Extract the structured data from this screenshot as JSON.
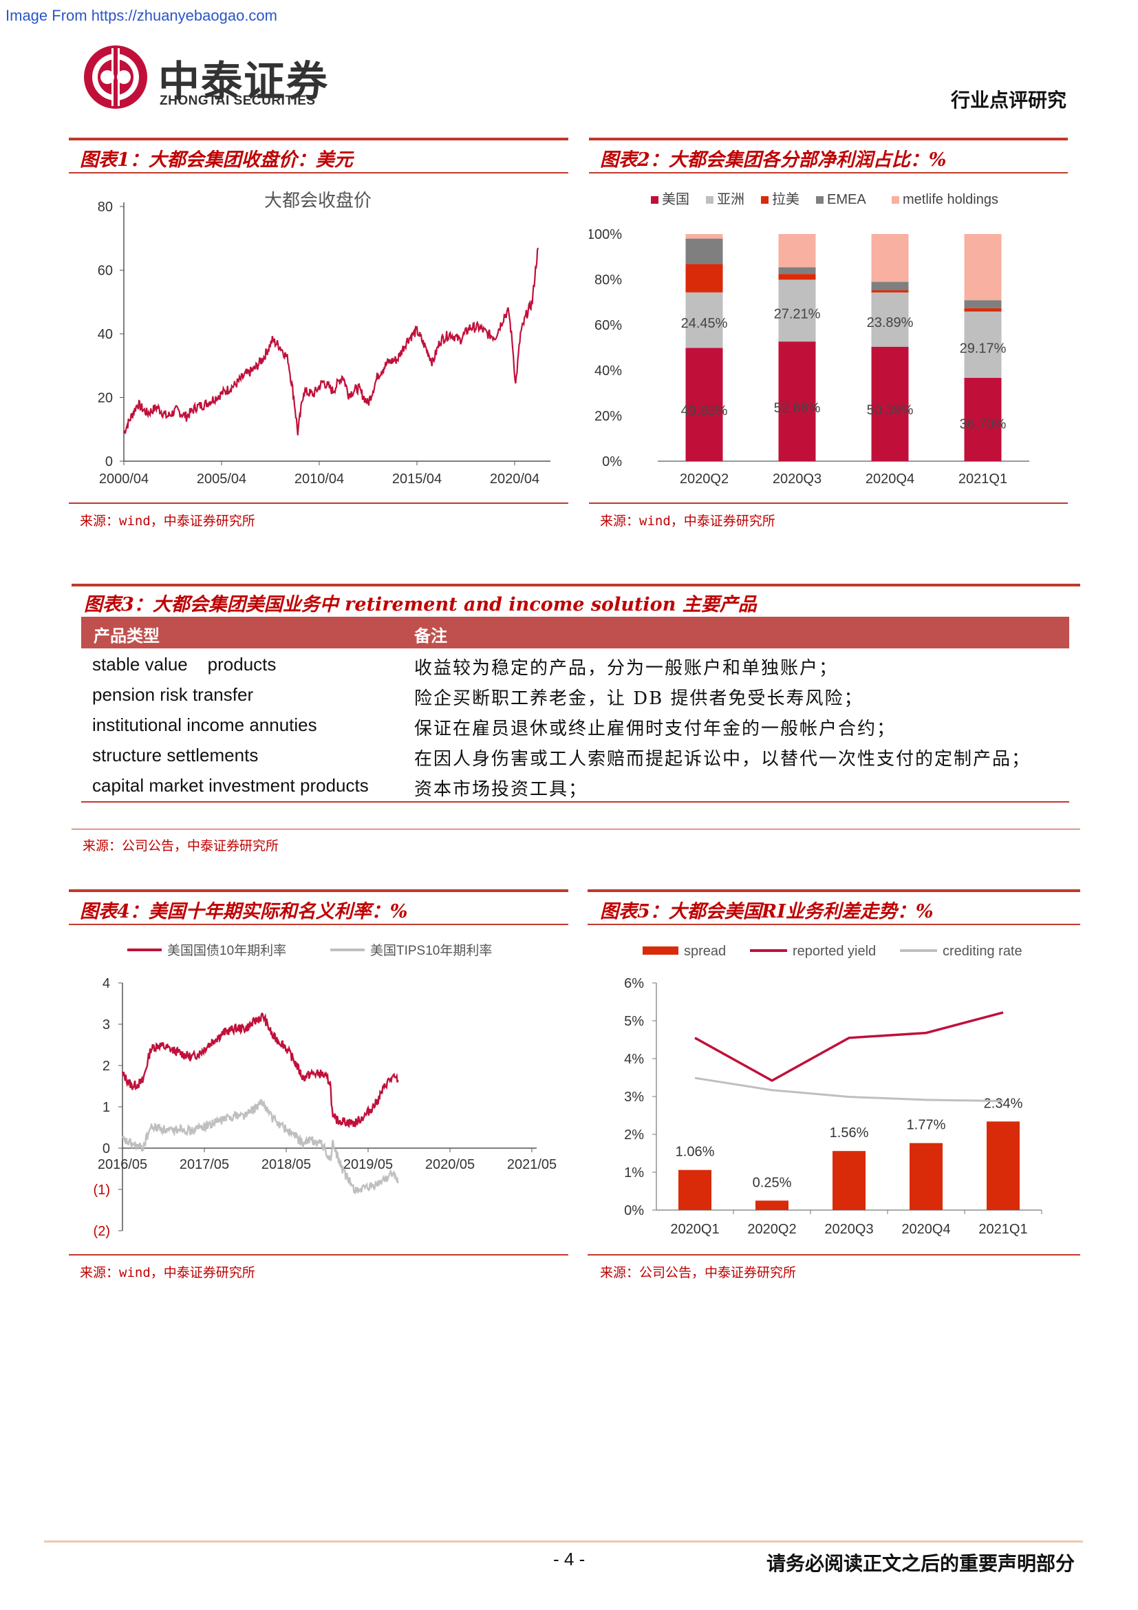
{
  "watermark": "Image From https://zhuanyebaogao.com",
  "header": {
    "logo_cn": "中泰证券",
    "logo_en": "ZHONGTAI SECURITIES",
    "report_type": "行业点评研究"
  },
  "fig1": {
    "title": "图表1：大都会集团收盘价：美元",
    "source": "来源：wind，中泰证券研究所"
  },
  "fig2": {
    "title": "图表2：大都会集团各分部净利润占比：%",
    "source": "来源：wind，中泰证券研究所"
  },
  "fig3": {
    "title": "图表3：大都会集团美国业务中 retirement and income solution 主要产品",
    "source": "来源：公司公告，中泰证券研究所",
    "columns": [
      "产品类型",
      "备注"
    ],
    "rows": [
      [
        "stable value    products",
        "收益较为稳定的产品，分为一般账户和单独账户；"
      ],
      [
        "pension risk transfer",
        "险企买断职工养老金，让 DB 提供者免受长寿风险；"
      ],
      [
        "institutional income annuties",
        "保证在雇员退休或终止雇佣时支付年金的一般帐户合约；"
      ],
      [
        "structure settlements",
        "在因人身伤害或工人索赔而提起诉讼中，以替代一次性支付的定制产品；"
      ],
      [
        "capital market investment products",
        "资本市场投资工具；"
      ]
    ]
  },
  "fig4": {
    "title": "图表4：美国十年期实际和名义利率：%",
    "source": "来源：wind，中泰证券研究所"
  },
  "fig5": {
    "title": "图表5：大都会美国RI业务利差走势：%",
    "source": "来源：公司公告，中泰证券研究所"
  },
  "footer": {
    "page": "- 4 -",
    "note": "请务必阅读正文之后的重要声明部分"
  },
  "colors": {
    "brand_red": "#c00000",
    "crimson": "#c0103a",
    "orange_red": "#d92b0a",
    "gray_light": "#bfbfbf",
    "gray_dark": "#7f7f7f",
    "salmon": "#f8b0a0"
  },
  "chart_data": [
    {
      "id": "fig1",
      "type": "line",
      "title": "大都会收盘价",
      "x_ticks": [
        "2000/04",
        "2005/04",
        "2010/04",
        "2015/04",
        "2020/04"
      ],
      "y_ticks": [
        "0",
        "20",
        "40",
        "60",
        "80"
      ],
      "ylim": [
        0,
        80
      ],
      "series": [
        {
          "color": "#c0103a",
          "x": [
            2000.3,
            2000.6,
            2001.0,
            2001.5,
            2002.0,
            2002.5,
            2003.0,
            2003.5,
            2004.0,
            2004.5,
            2005.0,
            2005.5,
            2006.0,
            2006.5,
            2007.0,
            2007.5,
            2007.9,
            2008.3,
            2008.7,
            2009.0,
            2009.2,
            2009.5,
            2010.0,
            2010.5,
            2011.0,
            2011.5,
            2011.8,
            2012.3,
            2012.8,
            2013.3,
            2013.8,
            2014.3,
            2014.8,
            2015.3,
            2015.8,
            2016.1,
            2016.5,
            2017.0,
            2017.5,
            2018.0,
            2018.5,
            2018.9,
            2019.3,
            2019.8,
            2020.0,
            2020.2,
            2020.35,
            2020.6,
            2020.9,
            2021.2,
            2021.4,
            2021.5
          ],
          "y": [
            9,
            13,
            18,
            15,
            17,
            14,
            16,
            14,
            17,
            18,
            20,
            22,
            24,
            27,
            29,
            33,
            38,
            36,
            32,
            20,
            9,
            22,
            21,
            25,
            22,
            27,
            21,
            23,
            18,
            27,
            31,
            32,
            38,
            41,
            35,
            31,
            38,
            40,
            38,
            42,
            42,
            40,
            39,
            46,
            47,
            36,
            24,
            40,
            46,
            50,
            62,
            67
          ]
        }
      ]
    },
    {
      "id": "fig2",
      "type": "bar",
      "stacked": true,
      "categories": [
        "2020Q2",
        "2020Q3",
        "2020Q4",
        "2021Q1"
      ],
      "y_ticks": [
        "0%",
        "20%",
        "40%",
        "60%",
        "80%",
        "100%"
      ],
      "ylim": [
        0,
        100
      ],
      "legend": [
        "美国",
        "亚洲",
        "拉美",
        "EMEA",
        "metlife holdings"
      ],
      "series": [
        {
          "name": "美国",
          "color": "#c0103a",
          "values": [
            49.85,
            52.68,
            50.39,
            36.7
          ]
        },
        {
          "name": "亚洲",
          "color": "#bfbfbf",
          "values": [
            24.45,
            27.21,
            23.89,
            29.17
          ]
        },
        {
          "name": "拉美",
          "color": "#d92b0a",
          "values": [
            12.5,
            2.5,
            1.0,
            1.5
          ]
        },
        {
          "name": "EMEA",
          "color": "#7f7f7f",
          "values": [
            11.2,
            3.0,
            3.7,
            3.5
          ]
        },
        {
          "name": "metlife holdings",
          "color": "#f8b0a0",
          "values": [
            2.0,
            14.61,
            21.02,
            29.13
          ]
        }
      ],
      "labels": [
        {
          "series": 0,
          "text": [
            "49.85%",
            "52.68%",
            "50.39%",
            "36.70%"
          ]
        },
        {
          "series": 1,
          "text": [
            "24.45%",
            "27.21%",
            "23.89%",
            "29.17%"
          ]
        }
      ]
    },
    {
      "id": "fig4",
      "type": "line",
      "x_ticks": [
        "2016/05",
        "2017/05",
        "2018/05",
        "2019/05",
        "2020/05",
        "2021/05"
      ],
      "y_ticks": [
        "(2)",
        "(1)",
        "0",
        "1",
        "2",
        "3",
        "4"
      ],
      "ylim": [
        -2,
        4
      ],
      "series": [
        {
          "name": "美国国债10年期利率",
          "color": "#c0103a",
          "x": [
            2016.33,
            2016.5,
            2016.7,
            2016.85,
            2017.0,
            2017.2,
            2017.4,
            2017.6,
            2017.75,
            2018.0,
            2018.2,
            2018.4,
            2018.6,
            2018.8,
            2018.92,
            2019.1,
            2019.3,
            2019.5,
            2019.65,
            2019.8,
            2020.0,
            2020.15,
            2020.2,
            2020.4,
            2020.6,
            2020.8,
            2021.0,
            2021.2,
            2021.3,
            2021.4
          ],
          "y": [
            1.8,
            1.5,
            1.6,
            2.4,
            2.5,
            2.4,
            2.3,
            2.2,
            2.3,
            2.6,
            2.8,
            2.9,
            2.9,
            3.1,
            3.2,
            2.7,
            2.5,
            2.1,
            1.7,
            1.8,
            1.8,
            1.6,
            0.7,
            0.65,
            0.6,
            0.8,
            1.1,
            1.6,
            1.7,
            1.65
          ]
        },
        {
          "name": "美国TIPS10年期利率",
          "color": "#bfbfbf",
          "x": [
            2016.33,
            2016.5,
            2016.7,
            2016.85,
            2017.0,
            2017.2,
            2017.4,
            2017.6,
            2017.75,
            2018.0,
            2018.2,
            2018.4,
            2018.6,
            2018.8,
            2018.92,
            2019.1,
            2019.3,
            2019.5,
            2019.65,
            2019.8,
            2020.0,
            2020.15,
            2020.2,
            2020.4,
            2020.6,
            2020.8,
            2021.0,
            2021.2,
            2021.3,
            2021.4
          ],
          "y": [
            0.2,
            0.1,
            0.0,
            0.5,
            0.5,
            0.4,
            0.5,
            0.4,
            0.5,
            0.6,
            0.7,
            0.8,
            0.8,
            1.0,
            1.1,
            0.7,
            0.5,
            0.3,
            0.1,
            0.2,
            0.1,
            -0.3,
            0.1,
            -0.6,
            -1.0,
            -1.0,
            -0.9,
            -0.7,
            -0.6,
            -0.85
          ]
        }
      ]
    },
    {
      "id": "fig5",
      "type": "bar",
      "categories": [
        "2020Q1",
        "2020Q2",
        "2020Q3",
        "2020Q4",
        "2021Q1"
      ],
      "y_ticks": [
        "0%",
        "1%",
        "2%",
        "3%",
        "4%",
        "5%",
        "6%"
      ],
      "ylim": [
        0,
        6
      ],
      "legend": [
        "spread",
        "reported yield",
        "crediting rate"
      ],
      "series": [
        {
          "name": "spread",
          "kind": "bar",
          "color": "#d92b0a",
          "values": [
            1.06,
            0.25,
            1.56,
            1.77,
            2.34
          ],
          "labels": [
            "1.06%",
            "0.25%",
            "1.56%",
            "1.77%",
            "2.34%"
          ]
        },
        {
          "name": "reported yield",
          "kind": "line",
          "color": "#c0103a",
          "values": [
            4.55,
            3.42,
            4.55,
            4.68,
            5.22
          ]
        },
        {
          "name": "crediting rate",
          "kind": "line",
          "color": "#bfbfbf",
          "values": [
            3.49,
            3.17,
            2.99,
            2.91,
            2.88
          ]
        }
      ]
    }
  ]
}
